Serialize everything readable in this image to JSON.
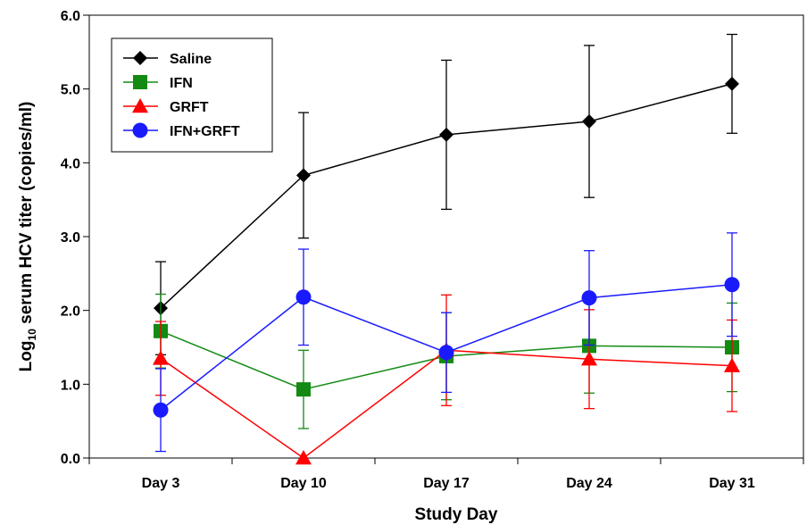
{
  "chart_data": {
    "type": "line",
    "categories": [
      "Day 3",
      "Day 10",
      "Day 17",
      "Day 24",
      "Day 31"
    ],
    "xlabel": "Study Day",
    "ylabel_parts": {
      "prefix": "Log",
      "subscript": "10",
      "suffix": " serum HCV titer (copies/ml)"
    },
    "ylim": [
      0,
      6
    ],
    "yticks": [
      0,
      1,
      2,
      3,
      4,
      5,
      6
    ],
    "ytick_labels": [
      "0.0",
      "1.0",
      "2.0",
      "3.0",
      "4.0",
      "5.0",
      "6.0"
    ],
    "grid": false,
    "legend_position": "top-left",
    "series": [
      {
        "name": "Saline",
        "color": "#000000",
        "marker": "diamond",
        "values": [
          2.03,
          3.83,
          4.38,
          4.56,
          5.07
        ],
        "error": [
          0.63,
          0.85,
          1.01,
          1.03,
          0.67
        ]
      },
      {
        "name": "IFN",
        "color": "#138a13",
        "marker": "square",
        "values": [
          1.72,
          0.93,
          1.38,
          1.52,
          1.5
        ],
        "error": [
          0.5,
          0.53,
          0.59,
          0.64,
          0.6
        ]
      },
      {
        "name": "GRFT",
        "color": "#ff0000",
        "marker": "triangle",
        "values": [
          1.35,
          0.0,
          1.46,
          1.34,
          1.25
        ],
        "error": [
          0.5,
          0.0,
          0.75,
          0.67,
          0.62
        ]
      },
      {
        "name": "IFN+GRFT",
        "color": "#1a1aff",
        "marker": "circle",
        "values": [
          0.65,
          2.18,
          1.43,
          2.17,
          2.35
        ],
        "error": [
          0.56,
          0.65,
          0.54,
          0.64,
          0.7
        ]
      }
    ]
  }
}
